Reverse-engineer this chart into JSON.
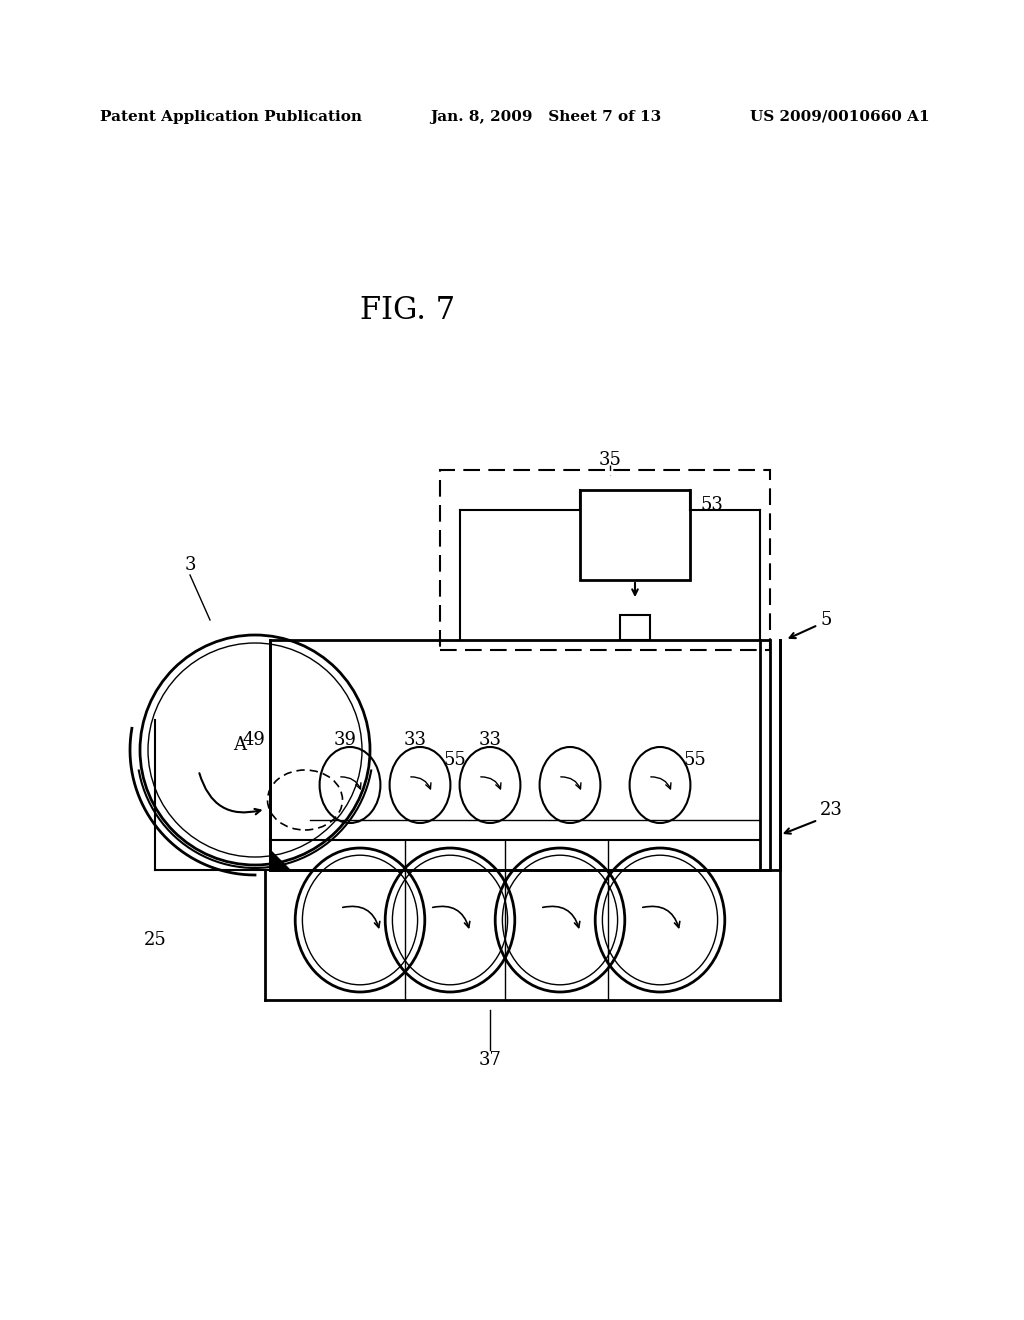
{
  "title": "FIG. 7",
  "header_left": "Patent Application Publication",
  "header_mid": "Jan. 8, 2009   Sheet 7 of 13",
  "header_right": "US 2009/0010660 A1",
  "bg_color": "#ffffff",
  "text_color": "#000000",
  "label_35": "35",
  "label_53": "53",
  "label_55a": "55",
  "label_55b": "55",
  "label_5": "5",
  "label_3": "3",
  "label_49": "49",
  "label_39": "39",
  "label_33a": "33",
  "label_33b": "33",
  "label_23": "23",
  "label_25": "25",
  "label_37": "37",
  "label_A": "A"
}
